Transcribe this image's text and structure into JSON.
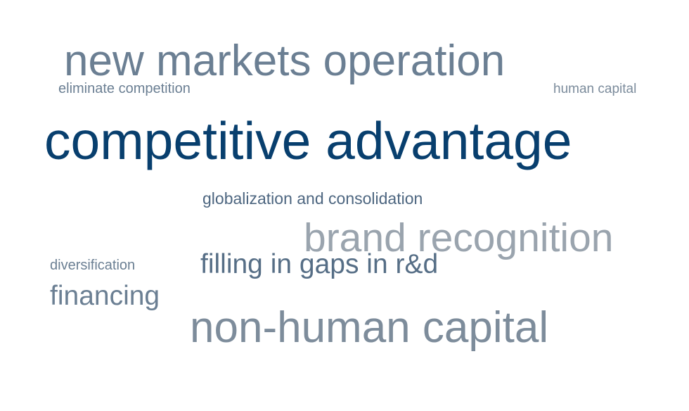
{
  "words": [
    {
      "id": "new-markets",
      "text": "new markets operation",
      "color": "#6b7f93"
    },
    {
      "id": "eliminate",
      "text": "eliminate competition",
      "color": "#6b7f93"
    },
    {
      "id": "human-capital",
      "text": "human capital",
      "color": "#7c8c9c"
    },
    {
      "id": "competitive",
      "text": "competitive advantage",
      "color": "#083f6e"
    },
    {
      "id": "globalization",
      "text": "globalization and consolidation",
      "color": "#4d6680"
    },
    {
      "id": "brand",
      "text": "brand recognition",
      "color": "#9aa4ae"
    },
    {
      "id": "filling",
      "text": "filling in gaps in r&d",
      "color": "#566e86"
    },
    {
      "id": "diversification",
      "text": "diversification",
      "color": "#6b7f93"
    },
    {
      "id": "financing",
      "text": "financing",
      "color": "#6b7f93"
    },
    {
      "id": "non-human",
      "text": "non-human capital",
      "color": "#7d8c9b"
    }
  ]
}
